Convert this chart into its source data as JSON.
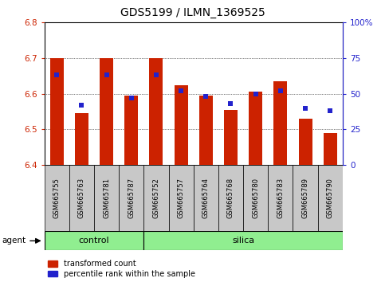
{
  "title": "GDS5199 / ILMN_1369525",
  "samples": [
    "GSM665755",
    "GSM665763",
    "GSM665781",
    "GSM665787",
    "GSM665752",
    "GSM665757",
    "GSM665764",
    "GSM665768",
    "GSM665780",
    "GSM665783",
    "GSM665789",
    "GSM665790"
  ],
  "transformed_count": [
    6.7,
    6.545,
    6.7,
    6.595,
    6.7,
    6.625,
    6.595,
    6.555,
    6.605,
    6.635,
    6.53,
    6.49
  ],
  "percentile_rank": [
    63,
    42,
    63,
    47,
    63,
    52,
    48,
    43,
    50,
    52,
    40,
    38
  ],
  "y_min": 6.4,
  "y_max": 6.8,
  "y_ticks": [
    6.4,
    6.5,
    6.6,
    6.7,
    6.8
  ],
  "y2_ticks": [
    0,
    25,
    50,
    75,
    100
  ],
  "bar_color": "#cc2200",
  "dot_color": "#2222cc",
  "control_color": "#90ee90",
  "silica_color": "#90ee90",
  "n_control": 4,
  "n_silica": 8,
  "bar_bottom": 6.4,
  "agent_label": "agent",
  "control_label": "control",
  "silica_label": "silica",
  "legend_red": "transformed count",
  "legend_blue": "percentile rank within the sample",
  "title_fontsize": 10,
  "tick_fontsize": 7.5,
  "label_fontsize": 8,
  "bar_width": 0.55,
  "label_gray": "#cccccc",
  "label_box_gray": "#c8c8c8"
}
